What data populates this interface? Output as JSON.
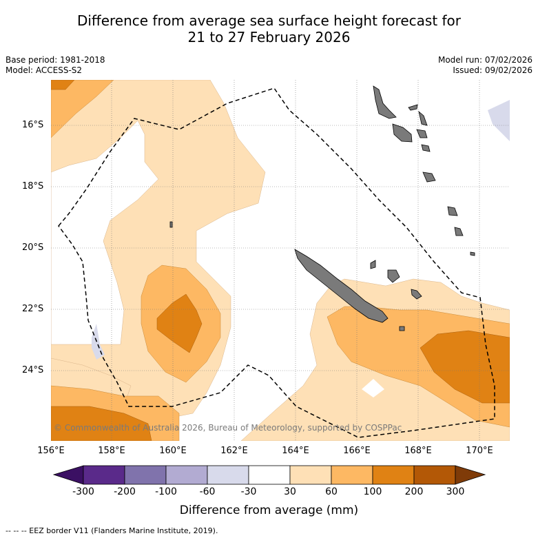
{
  "title_line1": "Difference from average sea surface height forecast for",
  "title_line2": "21 to 27 February 2026",
  "base_period": "Base period: 1981-2018",
  "model": "Model: ACCESS-S2",
  "model_run": "Model run: 07/02/2026",
  "issued": "Issued: 09/02/2026",
  "lat_labels": [
    "16°S",
    "18°S",
    "20°S",
    "22°S",
    "24°S"
  ],
  "lon_labels": [
    "156°E",
    "158°E",
    "160°E",
    "162°E",
    "164°E",
    "166°E",
    "168°E",
    "170°E"
  ],
  "copyright": "© Commonwealth of Australia 2026, Bureau of Meteorology, supported by COSPPac",
  "colorbar": {
    "ticks": [
      "-300",
      "-200",
      "-100",
      "-60",
      "-30",
      "30",
      "60",
      "100",
      "200",
      "300"
    ],
    "colors": [
      "#3b1063",
      "#5a2a8a",
      "#8073ac",
      "#b2abd2",
      "#d8daeb",
      "#ffffff",
      "#fee0b6",
      "#fdb863",
      "#e08214",
      "#b35806",
      "#7f3b08"
    ],
    "title": "Difference from average (mm)"
  },
  "footer": "-- -- -- EEZ border V11 (Flanders Marine Institute, 2019)."
}
